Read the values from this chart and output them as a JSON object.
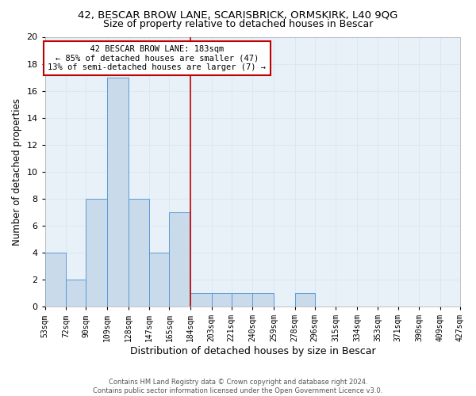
{
  "title_line1": "42, BESCAR BROW LANE, SCARISBRICK, ORMSKIRK, L40 9QG",
  "title_line2": "Size of property relative to detached houses in Bescar",
  "xlabel": "Distribution of detached houses by size in Bescar",
  "ylabel": "Number of detached properties",
  "footer_line1": "Contains HM Land Registry data © Crown copyright and database right 2024.",
  "footer_line2": "Contains public sector information licensed under the Open Government Licence v3.0.",
  "annotation_line1": "  42 BESCAR BROW LANE: 183sqm  ",
  "annotation_line2": "← 85% of detached houses are smaller (47)",
  "annotation_line3": "13% of semi-detached houses are larger (7) →",
  "bar_left_edges": [
    53,
    72,
    90,
    109,
    128,
    147,
    165,
    184,
    203,
    221,
    240,
    259,
    278,
    296,
    315,
    334,
    353,
    371,
    390,
    409
  ],
  "bar_right_edges": [
    72,
    90,
    109,
    128,
    147,
    165,
    184,
    203,
    221,
    240,
    259,
    278,
    296,
    315,
    334,
    353,
    371,
    390,
    409,
    427
  ],
  "bar_heights": [
    4,
    2,
    8,
    17,
    8,
    4,
    7,
    1,
    1,
    1,
    1,
    0,
    1,
    0,
    0,
    0,
    0,
    0,
    0,
    0
  ],
  "tick_labels": [
    "53sqm",
    "72sqm",
    "90sqm",
    "109sqm",
    "128sqm",
    "147sqm",
    "165sqm",
    "184sqm",
    "203sqm",
    "221sqm",
    "240sqm",
    "259sqm",
    "278sqm",
    "296sqm",
    "315sqm",
    "334sqm",
    "353sqm",
    "371sqm",
    "390sqm",
    "409sqm",
    "427sqm"
  ],
  "tick_positions": [
    53,
    72,
    90,
    109,
    128,
    147,
    165,
    184,
    203,
    221,
    240,
    259,
    278,
    296,
    315,
    334,
    353,
    371,
    390,
    409,
    427
  ],
  "bar_color": "#c9daea",
  "bar_edge_color": "#5b9bd5",
  "vline_x": 184,
  "vline_color": "#c00000",
  "xlim": [
    53,
    427
  ],
  "ylim": [
    0,
    20
  ],
  "yticks": [
    0,
    2,
    4,
    6,
    8,
    10,
    12,
    14,
    16,
    18,
    20
  ],
  "grid_color": "#d9e8f5",
  "bg_color": "#e8f0f8",
  "annotation_box_color": "#c00000",
  "title1_fontsize": 9.5,
  "title2_fontsize": 9,
  "xlabel_fontsize": 9,
  "ylabel_fontsize": 8.5,
  "tick_fontsize": 7
}
